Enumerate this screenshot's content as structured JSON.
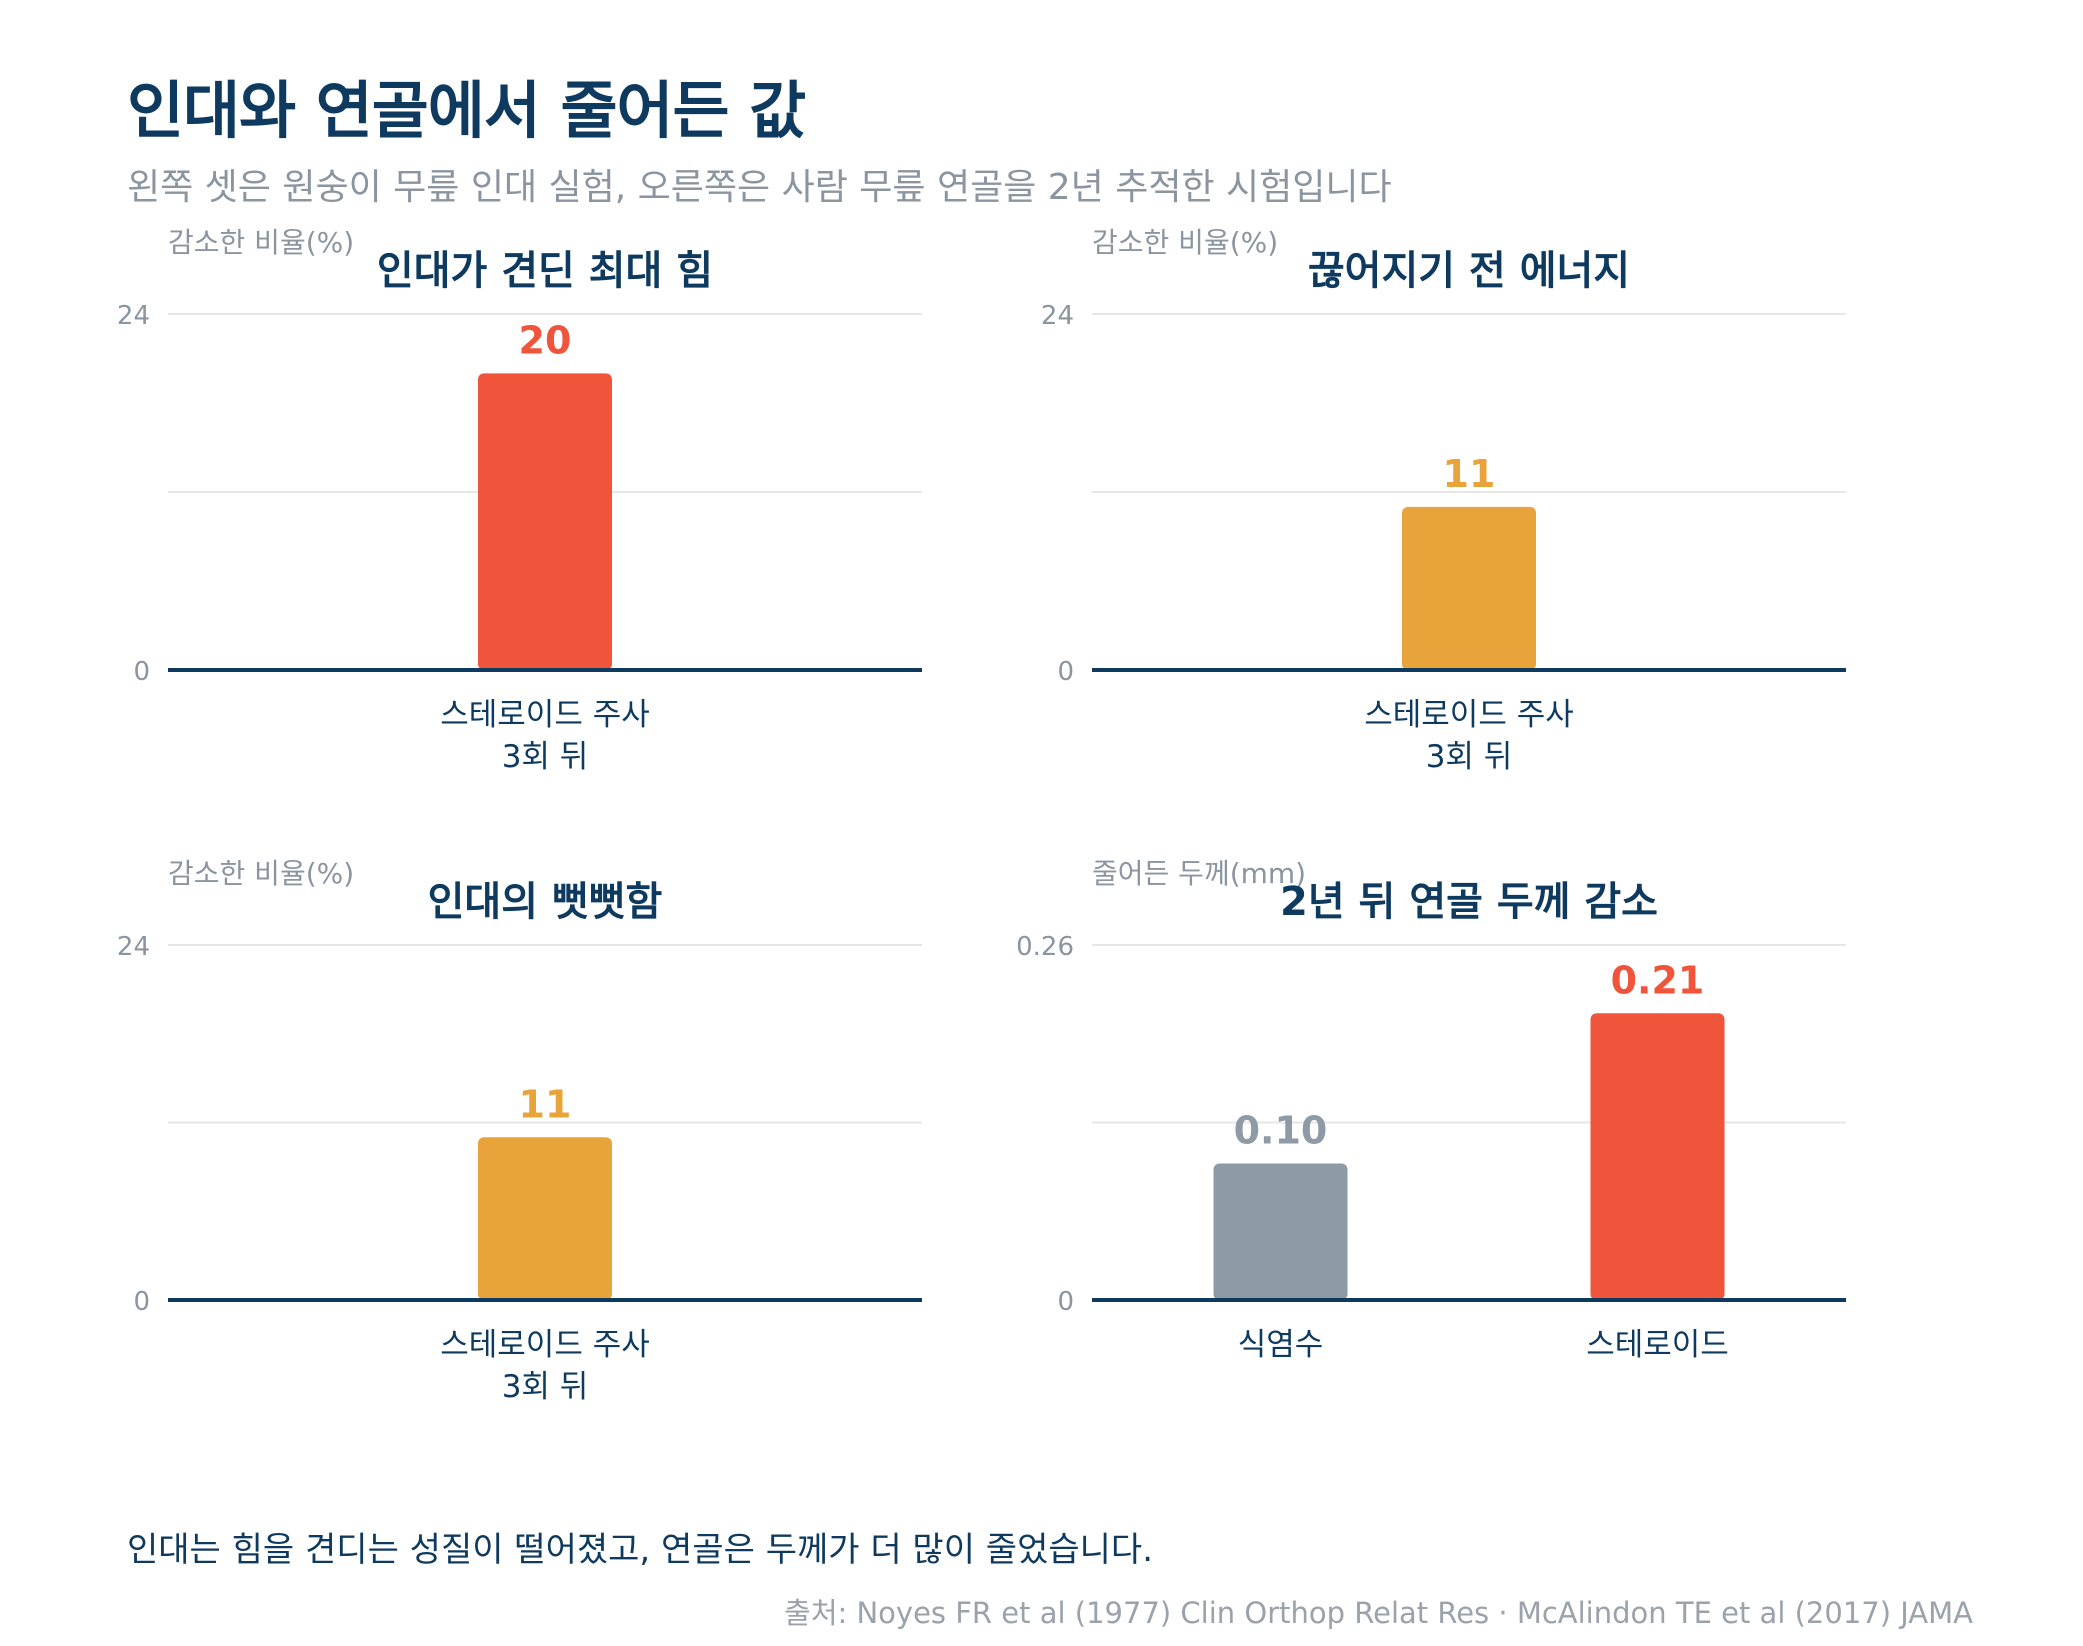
{
  "title": "인대와 연골에서 줄어든 값",
  "subtitle": "왼쪽 셋은 원숭이 무릎 인대 실험, 오른쪽은 사람 무릎 연골을 2년 추적한 시험입니다",
  "caption": "인대는 힘을 견디는 성질이 떨어졌고, 연골은 두께가 더 많이 줄었습니다.",
  "source": "출처: Noyes FR et al (1977) Clin Orthop Relat Res · McAlindon TE et al (2017) JAMA",
  "colors": {
    "title": "#0f3a5f",
    "muted": "#8b95a0",
    "red": "#f0553c",
    "amber": "#e8a43b",
    "gray": "#8e9ba6",
    "axis": "#0f3a5f",
    "grid": "#e6e6e6"
  },
  "chart_data": [
    {
      "type": "bar",
      "title": "인대가 견딘 최대 힘",
      "ylabel": "감소한 비율(%)",
      "ylim": [
        0,
        24
      ],
      "yticks": [
        "0",
        "24"
      ],
      "categories": [
        "스테로이드 주사\n3회 뒤"
      ],
      "values": [
        20
      ],
      "value_labels": [
        "20"
      ],
      "colors": [
        "#f0553c"
      ]
    },
    {
      "type": "bar",
      "title": "끊어지기 전 에너지",
      "ylabel": "감소한 비율(%)",
      "ylim": [
        0,
        24
      ],
      "yticks": [
        "0",
        "24"
      ],
      "categories": [
        "스테로이드 주사\n3회 뒤"
      ],
      "values": [
        11
      ],
      "value_labels": [
        "11"
      ],
      "colors": [
        "#e8a43b"
      ]
    },
    {
      "type": "bar",
      "title": "인대의 뻣뻣함",
      "ylabel": "감소한 비율(%)",
      "ylim": [
        0,
        24
      ],
      "yticks": [
        "0",
        "24"
      ],
      "categories": [
        "스테로이드 주사\n3회 뒤"
      ],
      "values": [
        11
      ],
      "value_labels": [
        "11"
      ],
      "colors": [
        "#e8a43b"
      ]
    },
    {
      "type": "bar",
      "title": "2년 뒤 연골 두께 감소",
      "ylabel": "줄어든 두께(mm)",
      "ylim": [
        0,
        0.26
      ],
      "yticks": [
        "0",
        "0.26"
      ],
      "categories": [
        "식염수",
        "스테로이드"
      ],
      "values": [
        0.1,
        0.21
      ],
      "value_labels": [
        "0.10",
        "0.21"
      ],
      "colors": [
        "#8e9ba6",
        "#f0553c"
      ]
    }
  ]
}
